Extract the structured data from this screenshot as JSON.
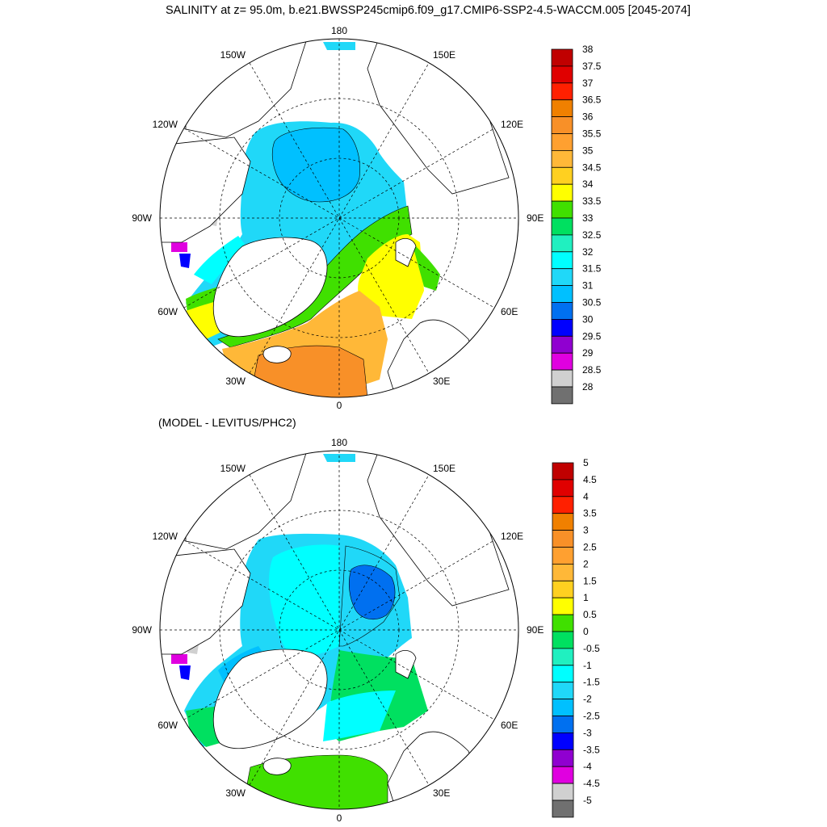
{
  "title": "SALINITY at z=  95.0m, b.e21.BWSSP245cmip6.f09_g17.CMIP6-SSP2-4.5-WACCM.005 [2045-2074]",
  "subtitle": "(MODEL - LEVITUS/PHC2)",
  "chart_data": [
    {
      "type": "heatmap",
      "projection": "north-polar-stereographic",
      "title": "SALINITY at z=  95.0m, b.e21.BWSSP245cmip6.f09_g17.CMIP6-SSP2-4.5-WACCM.005 [2045-2074]",
      "longitude_labels": [
        "180",
        "150E",
        "120E",
        "90E",
        "60E",
        "30E",
        "0",
        "30W",
        "60W",
        "90W",
        "120W",
        "150W"
      ],
      "colorbar_levels": [
        "38",
        "37.5",
        "37",
        "36.5",
        "36",
        "35.5",
        "35",
        "34.5",
        "34",
        "33.5",
        "33",
        "32.5",
        "32",
        "31.5",
        "31",
        "30.5",
        "30",
        "29.5",
        "29",
        "28.5",
        "28"
      ],
      "colorbar_colors": [
        "#c00000",
        "#e00000",
        "#ff2000",
        "#f08000",
        "#f89028",
        "#ffa030",
        "#ffb838",
        "#ffd020",
        "#ffff00",
        "#40e000",
        "#00e060",
        "#20f0c0",
        "#00ffff",
        "#20d8f8",
        "#00c0ff",
        "#0070f0",
        "#0000ff",
        "#9000d0",
        "#e000e0",
        "#d0d0d0",
        "#707070"
      ],
      "colors": {
        "land": "#ffffff",
        "coast": "#000000"
      }
    },
    {
      "type": "heatmap",
      "projection": "north-polar-stereographic",
      "title": "(MODEL - LEVITUS/PHC2)",
      "longitude_labels": [
        "180",
        "150E",
        "120E",
        "90E",
        "60E",
        "30E",
        "0",
        "30W",
        "60W",
        "90W",
        "120W",
        "150W"
      ],
      "colorbar_levels": [
        "5",
        "4.5",
        "4",
        "3.5",
        "3",
        "2.5",
        "2",
        "1.5",
        "1",
        "0.5",
        "0",
        "-0.5",
        "-1",
        "-1.5",
        "-2",
        "-2.5",
        "-3",
        "-3.5",
        "-4",
        "-4.5",
        "-5"
      ],
      "colorbar_colors": [
        "#c00000",
        "#e00000",
        "#ff2000",
        "#f08000",
        "#f89028",
        "#ffa030",
        "#ffb838",
        "#ffd020",
        "#ffff00",
        "#40e000",
        "#00e060",
        "#20f0c0",
        "#00ffff",
        "#20d8f8",
        "#00c0ff",
        "#0070f0",
        "#0000ff",
        "#9000d0",
        "#e000e0",
        "#d0d0d0",
        "#707070"
      ],
      "colors": {
        "land": "#ffffff",
        "coast": "#000000"
      }
    }
  ]
}
